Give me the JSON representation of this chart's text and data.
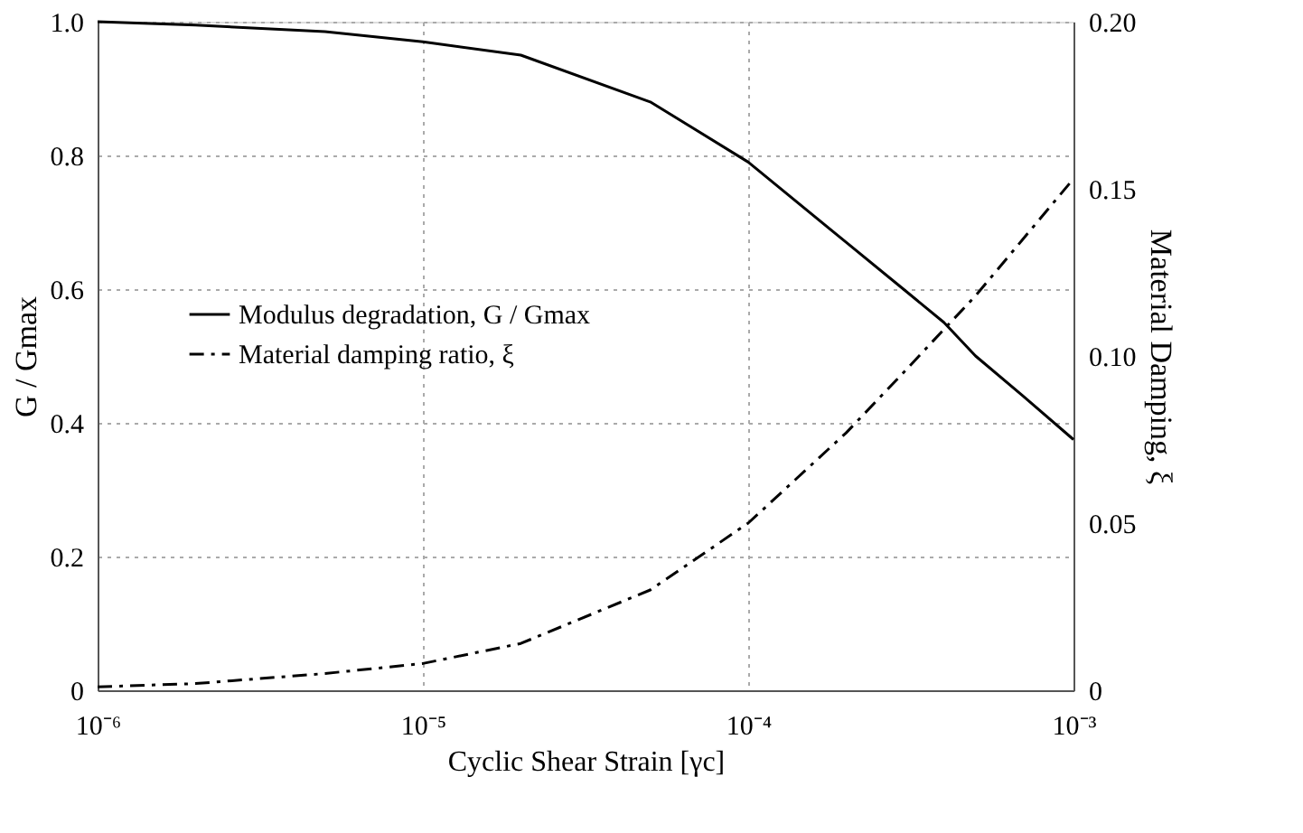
{
  "chart_data": {
    "type": "line",
    "xlabel": "Cyclic Shear Strain [γc]",
    "ylabel": "G / Gmax",
    "y2label": "Material Damping, ξ",
    "log": "x",
    "grid": true,
    "legend": "left",
    "marker": "none",
    "xlim": [
      1e-06,
      0.001
    ],
    "xticks": [
      {
        "value": 1e-06,
        "label": "10⁻⁶"
      },
      {
        "value": 1e-05,
        "label": "10⁻⁵"
      },
      {
        "value": 0.0001,
        "label": "10⁻⁴"
      },
      {
        "value": 0.001,
        "label": "10⁻³"
      }
    ],
    "ylim": [
      0,
      1
    ],
    "yticks": [
      {
        "value": 0,
        "label": "0"
      },
      {
        "value": 0.2,
        "label": "0.2"
      },
      {
        "value": 0.4,
        "label": "0.4"
      },
      {
        "value": 0.6,
        "label": "0.6"
      },
      {
        "value": 0.8,
        "label": "0.8"
      },
      {
        "value": 1,
        "label": "1.0"
      }
    ],
    "y2lim": [
      0,
      0.2
    ],
    "y2ticks": [
      {
        "value": 0,
        "label": "0"
      },
      {
        "value": 0.05,
        "label": "0.05"
      },
      {
        "value": 0.1,
        "label": "0.10"
      },
      {
        "value": 0.15,
        "label": "0.15"
      },
      {
        "value": 0.2,
        "label": "0.20"
      }
    ],
    "x": [
      1e-06,
      2e-06,
      5e-06,
      1e-05,
      2e-05,
      5e-05,
      0.0001,
      0.0002,
      0.0003,
      0.0004,
      0.0005,
      0.0007,
      0.001
    ],
    "series": [
      {
        "name": "Modulus degradation, G / Gmax",
        "color": "#000000",
        "line_style": "solid",
        "values": [
          1.0,
          0.995,
          0.985,
          0.97,
          0.95,
          0.88,
          0.79,
          0.67,
          0.6,
          0.55,
          0.5,
          0.44,
          0.375
        ]
      },
      {
        "name": "Material damping ratio, ξ",
        "color": "#000000",
        "line_style": "dashed",
        "axis": "y2",
        "values": [
          0.001,
          0.002,
          0.005,
          0.008,
          0.014,
          0.03,
          0.05,
          0.077,
          0.095,
          0.108,
          0.118,
          0.135,
          0.153
        ]
      }
    ]
  }
}
